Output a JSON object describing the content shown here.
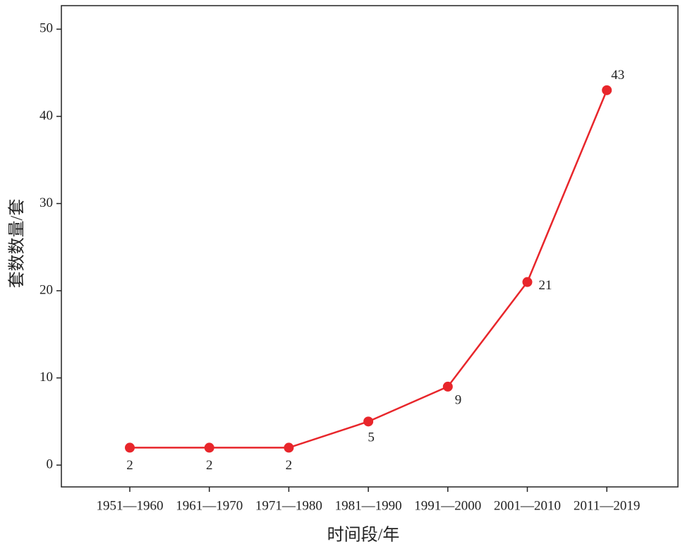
{
  "chart_data": {
    "type": "line",
    "y_label": "套数数量/套",
    "x_label": "时间段/年",
    "categories": [
      "1951—1960",
      "1961—1970",
      "1971—1980",
      "1981—1990",
      "1991—2000",
      "2001—2010",
      "2011—2019"
    ],
    "series": [
      {
        "name": "套数数量",
        "color": "#e8262b",
        "values": [
          2,
          2,
          2,
          5,
          9,
          21,
          43
        ]
      }
    ],
    "ylim": [
      -2.5,
      52.7
    ],
    "yticks": [
      0,
      10,
      20,
      30,
      40,
      50
    ]
  }
}
